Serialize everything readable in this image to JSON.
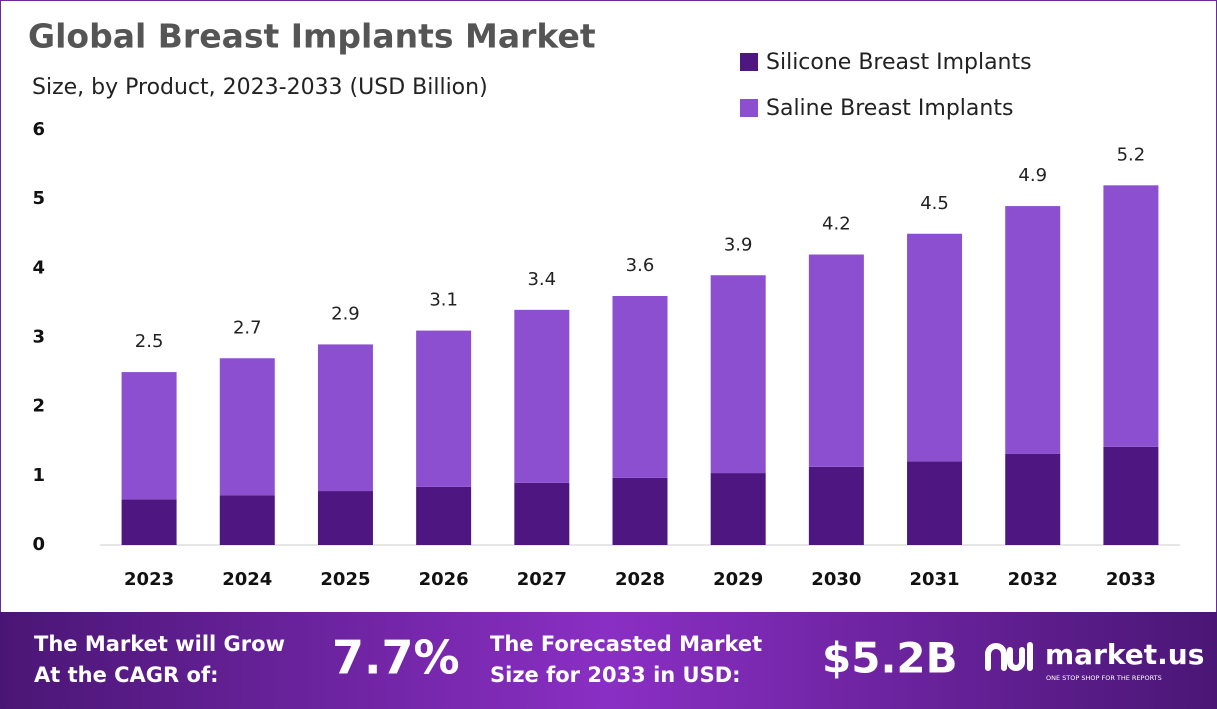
{
  "chart_data": {
    "type": "stacked-bar",
    "title": "Global Breast Implants Market",
    "subtitle": "Size, by Product, 2023-2033 (USD Billion)",
    "categories": [
      "2023",
      "2024",
      "2025",
      "2026",
      "2027",
      "2028",
      "2029",
      "2030",
      "2031",
      "2032",
      "2033"
    ],
    "series": [
      {
        "name": "Silicone Breast Implants",
        "color": "#4e1680",
        "values": [
          0.66,
          0.72,
          0.78,
          0.84,
          0.9,
          0.97,
          1.04,
          1.13,
          1.21,
          1.32,
          1.42
        ]
      },
      {
        "name": "Saline Breast Implants",
        "color": "#8c4fd0",
        "values": [
          1.84,
          1.98,
          2.12,
          2.26,
          2.5,
          2.63,
          2.86,
          3.07,
          3.29,
          3.58,
          3.78
        ]
      }
    ],
    "totals": [
      2.5,
      2.7,
      2.9,
      3.1,
      3.4,
      3.6,
      3.9,
      4.2,
      4.5,
      4.9,
      5.2
    ],
    "ylim": [
      0,
      6
    ],
    "yticks": [
      0,
      1,
      2,
      3,
      4,
      5,
      6
    ]
  },
  "footer": {
    "cagr_text": [
      "The Market will Grow",
      "At the CAGR of:"
    ],
    "cagr": "7.7%",
    "forecast_text": [
      "The Forecasted Market",
      "Size for 2033 in USD:"
    ],
    "forecast": "$5.2B",
    "brand": "market.us",
    "tagline": "ONE STOP SHOP FOR THE REPORTS"
  }
}
